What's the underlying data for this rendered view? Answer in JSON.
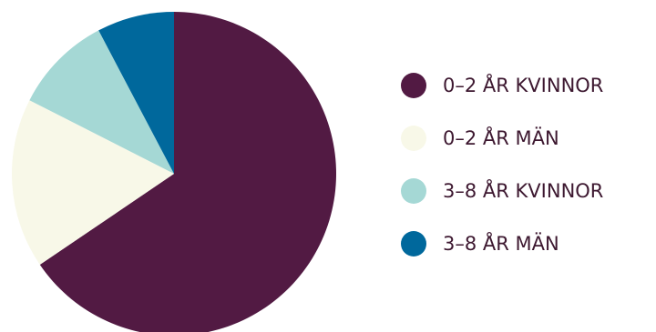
{
  "chart_data": {
    "type": "pie",
    "title": "",
    "start": "12 o'clock",
    "direction": "clockwise",
    "legend_position": "right",
    "slices": [
      {
        "label": "0–2 ÅR KVINNOR",
        "value": 65.5,
        "color": "#521a43"
      },
      {
        "label": "0–2 ÅR MÄN",
        "value": 17.0,
        "color": "#f8f8e8"
      },
      {
        "label": "3–8 ÅR KVINNOR",
        "value": 9.8,
        "color": "#a5d8d5"
      },
      {
        "label": "3–8 ÅR MÄN",
        "value": 7.7,
        "color": "#00689c"
      }
    ]
  }
}
